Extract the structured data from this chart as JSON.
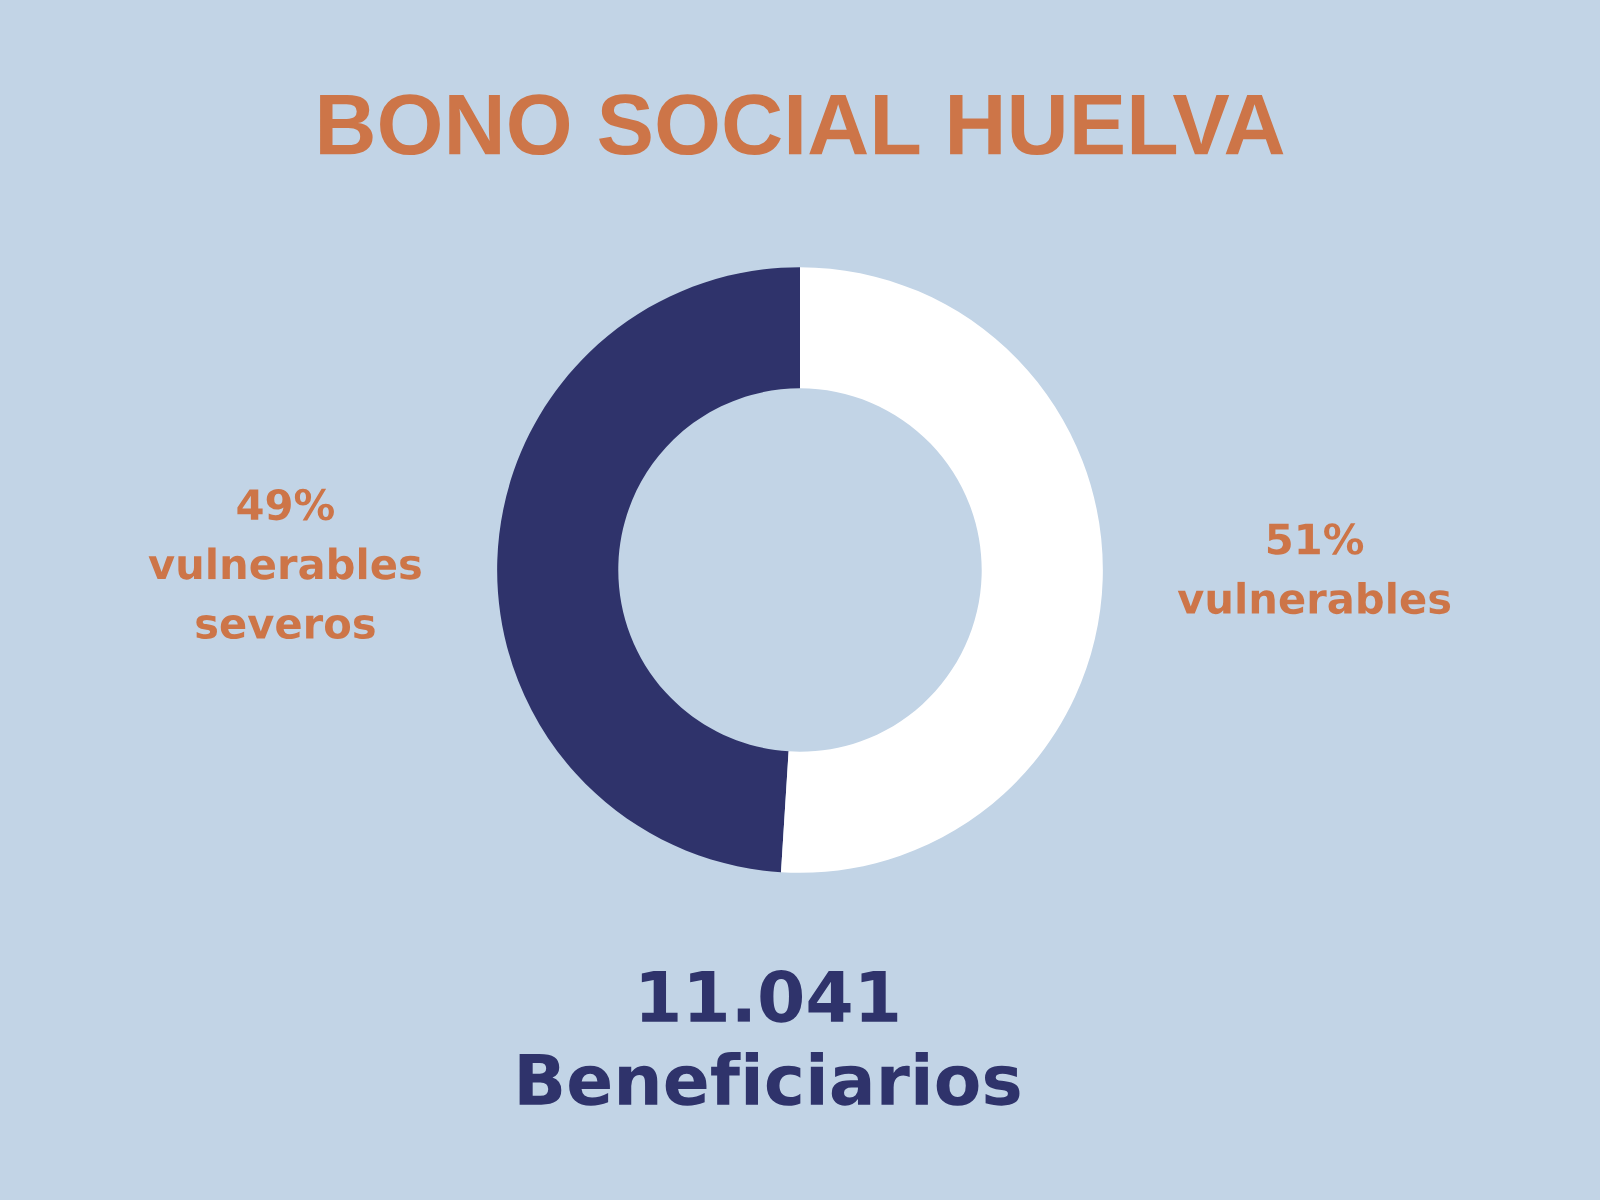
{
  "chart_data": {
    "type": "donut",
    "title": "BONO SOCIAL HUELVA",
    "categories": [
      "vulnerables\nseveros",
      "vulnerables"
    ],
    "values": [
      49,
      51
    ],
    "colors": [
      "#2f336b",
      "#ffffff"
    ],
    "value_labels": [
      "49%",
      "51%"
    ],
    "annotations": [
      "11.041\nBeneficiarios"
    ]
  }
}
